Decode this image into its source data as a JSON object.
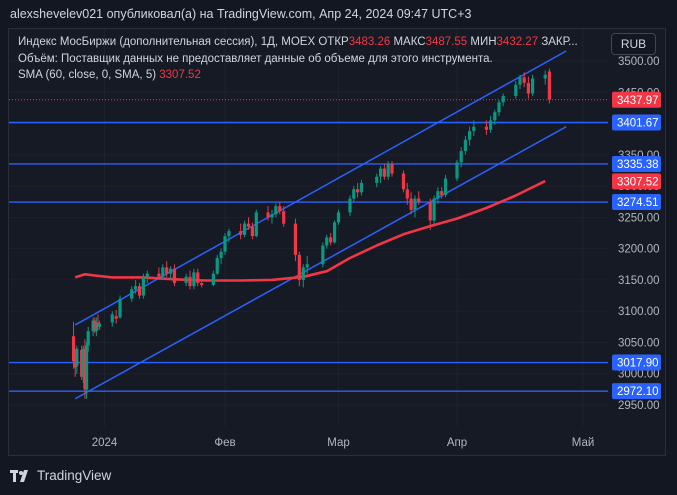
{
  "header": {
    "text": "alexshevelev021 опубликовал(а) на TradingView.com, Апр 24, 2024 09:47 UTC+3"
  },
  "legend": {
    "symbol": "Индекс МосБиржи (дополнительная сессия), 1Д, MOEX",
    "open_label": "ОТКР",
    "open_value": "3483.26",
    "high_label": "МАКС",
    "high_value": "3487.55",
    "low_label": "МИН",
    "low_value": "3432.27",
    "close_label": "ЗАКР...",
    "volume_text": "Объём: Поставщик данных не предоставляет данные об объеме для этого инструмента.",
    "sma_text": "SMA (60, close, 0, SMA, 5)",
    "sma_value": "3307.52"
  },
  "currency_button": "RUB",
  "footer": {
    "brand": "TradingView"
  },
  "colors": {
    "up": "#089981",
    "down": "#f23645",
    "channel": "#2962ff",
    "sma": "#f23645"
  },
  "chart_data": {
    "type": "candlestick",
    "x_ticks": [
      "2024",
      "Фев",
      "Мар",
      "Апр",
      "Май"
    ],
    "y_ticks": [
      "2950.00",
      "3000.00",
      "3050.00",
      "3100.00",
      "3150.00",
      "3200.00",
      "3250.00",
      "3300.00",
      "3350.00",
      "3400.00",
      "3450.00",
      "3500.00"
    ],
    "ylim": [
      2925,
      3510
    ],
    "horizontal_levels": [
      3401.67,
      3335.38,
      3274.51,
      3017.9,
      2972.1
    ],
    "price_tags": [
      {
        "value": 3437.97,
        "text": "3437.97",
        "color": "#f23645"
      },
      {
        "value": 3401.67,
        "text": "3401.67",
        "color": "#2962ff"
      },
      {
        "value": 3335.38,
        "text": "3335.38",
        "color": "#2962ff"
      },
      {
        "value": 3307.52,
        "text": "3307.52",
        "color": "#f23645"
      },
      {
        "value": 3274.51,
        "text": "3274.51",
        "color": "#2962ff"
      },
      {
        "value": 3017.9,
        "text": "3017.90",
        "color": "#2962ff"
      },
      {
        "value": 2972.1,
        "text": "2972.10",
        "color": "#2962ff"
      }
    ],
    "last_close": 3437.97,
    "channel_lines": [
      {
        "from": [
          "2023-12-14",
          3078
        ],
        "to": [
          "2024-04-27",
          3516
        ]
      },
      {
        "from": [
          "2023-12-14",
          2960
        ],
        "to": [
          "2024-04-27",
          3395
        ]
      }
    ],
    "sma": {
      "name": "SMA (60, close, 0, SMA, 5)",
      "points": [
        [
          "2023-12-14",
          3154
        ],
        [
          "2023-12-20",
          3159
        ],
        [
          "2023-12-26",
          3157
        ],
        [
          "2024-01-03",
          3154
        ],
        [
          "2024-01-11",
          3154
        ],
        [
          "2024-01-19",
          3151
        ],
        [
          "2024-01-27",
          3149
        ],
        [
          "2024-02-05",
          3149
        ],
        [
          "2024-02-13",
          3150
        ],
        [
          "2024-02-21",
          3155
        ],
        [
          "2024-02-27",
          3164
        ],
        [
          "2024-03-04",
          3185
        ],
        [
          "2024-03-11",
          3205
        ],
        [
          "2024-03-18",
          3223
        ],
        [
          "2024-03-25",
          3236
        ],
        [
          "2024-04-01",
          3248
        ],
        [
          "2024-04-08",
          3265
        ],
        [
          "2024-04-15",
          3285
        ],
        [
          "2024-04-22",
          3308
        ]
      ]
    },
    "candles": [
      {
        "date": "2023-12-13",
        "o": 3060,
        "h": 3083,
        "l": 3008,
        "c": 3020
      },
      {
        "date": "2023-12-14",
        "o": 3020,
        "h": 3035,
        "l": 2995,
        "c": 3010
      },
      {
        "date": "2023-12-15",
        "o": 3012,
        "h": 3045,
        "l": 3000,
        "c": 3040
      },
      {
        "date": "2023-12-18",
        "o": 3038,
        "h": 3045,
        "l": 2990,
        "c": 2995
      },
      {
        "date": "2023-12-19",
        "o": 2995,
        "h": 3045,
        "l": 2985,
        "c": 3040
      },
      {
        "date": "2023-12-20",
        "o": 3040,
        "h": 3055,
        "l": 2960,
        "c": 2975
      },
      {
        "date": "2023-12-21",
        "o": 2975,
        "h": 3050,
        "l": 2960,
        "c": 3045
      },
      {
        "date": "2023-12-22",
        "o": 3045,
        "h": 3075,
        "l": 3035,
        "c": 3068
      },
      {
        "date": "2023-12-25",
        "o": 3068,
        "h": 3090,
        "l": 3060,
        "c": 3085
      },
      {
        "date": "2023-12-26",
        "o": 3085,
        "h": 3090,
        "l": 3065,
        "c": 3070
      },
      {
        "date": "2023-12-27",
        "o": 3068,
        "h": 3090,
        "l": 3060,
        "c": 3082
      },
      {
        "date": "2023-12-28",
        "o": 3082,
        "h": 3095,
        "l": 3070,
        "c": 3075
      },
      {
        "date": "2023-12-29",
        "o": 3075,
        "h": 3085,
        "l": 3070,
        "c": 3080
      },
      {
        "date": "2024-01-03",
        "o": 3082,
        "h": 3100,
        "l": 3075,
        "c": 3095
      },
      {
        "date": "2024-01-04",
        "o": 3092,
        "h": 3102,
        "l": 3080,
        "c": 3088
      },
      {
        "date": "2024-01-05",
        "o": 3090,
        "h": 3125,
        "l": 3088,
        "c": 3120
      },
      {
        "date": "2024-01-08",
        "o": 3120,
        "h": 3140,
        "l": 3115,
        "c": 3135
      },
      {
        "date": "2024-01-09",
        "o": 3135,
        "h": 3150,
        "l": 3128,
        "c": 3140
      },
      {
        "date": "2024-01-10",
        "o": 3140,
        "h": 3145,
        "l": 3120,
        "c": 3125
      },
      {
        "date": "2024-01-11",
        "o": 3125,
        "h": 3160,
        "l": 3120,
        "c": 3155
      },
      {
        "date": "2024-01-12",
        "o": 3155,
        "h": 3165,
        "l": 3145,
        "c": 3160
      },
      {
        "date": "2024-01-15",
        "o": 3160,
        "h": 3170,
        "l": 3150,
        "c": 3155
      },
      {
        "date": "2024-01-16",
        "o": 3155,
        "h": 3175,
        "l": 3150,
        "c": 3170
      },
      {
        "date": "2024-01-17",
        "o": 3170,
        "h": 3180,
        "l": 3155,
        "c": 3160
      },
      {
        "date": "2024-01-18",
        "o": 3160,
        "h": 3172,
        "l": 3150,
        "c": 3168
      },
      {
        "date": "2024-01-19",
        "o": 3168,
        "h": 3175,
        "l": 3140,
        "c": 3145
      },
      {
        "date": "2024-01-22",
        "o": 3145,
        "h": 3160,
        "l": 3140,
        "c": 3155
      },
      {
        "date": "2024-01-23",
        "o": 3155,
        "h": 3165,
        "l": 3135,
        "c": 3140
      },
      {
        "date": "2024-01-24",
        "o": 3140,
        "h": 3168,
        "l": 3135,
        "c": 3162
      },
      {
        "date": "2024-01-25",
        "o": 3162,
        "h": 3168,
        "l": 3140,
        "c": 3145
      },
      {
        "date": "2024-01-26",
        "o": 3145,
        "h": 3150,
        "l": 3138,
        "c": 3142
      },
      {
        "date": "2024-01-29",
        "o": 3142,
        "h": 3165,
        "l": 3140,
        "c": 3160
      },
      {
        "date": "2024-01-30",
        "o": 3160,
        "h": 3190,
        "l": 3158,
        "c": 3185
      },
      {
        "date": "2024-01-31",
        "o": 3185,
        "h": 3200,
        "l": 3175,
        "c": 3195
      },
      {
        "date": "2024-02-01",
        "o": 3195,
        "h": 3225,
        "l": 3190,
        "c": 3220
      },
      {
        "date": "2024-02-02",
        "o": 3220,
        "h": 3232,
        "l": 3210,
        "c": 3228
      },
      {
        "date": "2024-02-05",
        "o": 3228,
        "h": 3240,
        "l": 3215,
        "c": 3222
      },
      {
        "date": "2024-02-06",
        "o": 3222,
        "h": 3245,
        "l": 3218,
        "c": 3240
      },
      {
        "date": "2024-02-07",
        "o": 3240,
        "h": 3250,
        "l": 3230,
        "c": 3235
      },
      {
        "date": "2024-02-08",
        "o": 3235,
        "h": 3242,
        "l": 3215,
        "c": 3220
      },
      {
        "date": "2024-02-09",
        "o": 3220,
        "h": 3262,
        "l": 3218,
        "c": 3258
      },
      {
        "date": "2024-02-12",
        "o": 3258,
        "h": 3268,
        "l": 3245,
        "c": 3250
      },
      {
        "date": "2024-02-13",
        "o": 3250,
        "h": 3262,
        "l": 3240,
        "c": 3255
      },
      {
        "date": "2024-02-14",
        "o": 3255,
        "h": 3272,
        "l": 3250,
        "c": 3268
      },
      {
        "date": "2024-02-15",
        "o": 3268,
        "h": 3275,
        "l": 3255,
        "c": 3260
      },
      {
        "date": "2024-02-16",
        "o": 3260,
        "h": 3268,
        "l": 3235,
        "c": 3240
      },
      {
        "date": "2024-02-19",
        "o": 3240,
        "h": 3248,
        "l": 3180,
        "c": 3190
      },
      {
        "date": "2024-02-20",
        "o": 3190,
        "h": 3195,
        "l": 3140,
        "c": 3150
      },
      {
        "date": "2024-02-21",
        "o": 3150,
        "h": 3175,
        "l": 3138,
        "c": 3170
      },
      {
        "date": "2024-02-22",
        "o": 3170,
        "h": 3188,
        "l": 3160,
        "c": 3175
      },
      {
        "date": "2024-02-26",
        "o": 3175,
        "h": 3210,
        "l": 3170,
        "c": 3205
      },
      {
        "date": "2024-02-27",
        "o": 3205,
        "h": 3222,
        "l": 3200,
        "c": 3218
      },
      {
        "date": "2024-02-28",
        "o": 3218,
        "h": 3225,
        "l": 3205,
        "c": 3210
      },
      {
        "date": "2024-02-29",
        "o": 3210,
        "h": 3245,
        "l": 3208,
        "c": 3242
      },
      {
        "date": "2024-03-01",
        "o": 3242,
        "h": 3262,
        "l": 3238,
        "c": 3258
      },
      {
        "date": "2024-03-04",
        "o": 3258,
        "h": 3285,
        "l": 3252,
        "c": 3280
      },
      {
        "date": "2024-03-05",
        "o": 3280,
        "h": 3300,
        "l": 3275,
        "c": 3295
      },
      {
        "date": "2024-03-06",
        "o": 3295,
        "h": 3305,
        "l": 3282,
        "c": 3290
      },
      {
        "date": "2024-03-07",
        "o": 3290,
        "h": 3310,
        "l": 3285,
        "c": 3305
      },
      {
        "date": "2024-03-11",
        "o": 3305,
        "h": 3320,
        "l": 3298,
        "c": 3315
      },
      {
        "date": "2024-03-12",
        "o": 3315,
        "h": 3332,
        "l": 3305,
        "c": 3328
      },
      {
        "date": "2024-03-13",
        "o": 3328,
        "h": 3335,
        "l": 3310,
        "c": 3315
      },
      {
        "date": "2024-03-14",
        "o": 3315,
        "h": 3340,
        "l": 3310,
        "c": 3335
      },
      {
        "date": "2024-03-15",
        "o": 3335,
        "h": 3340,
        "l": 3315,
        "c": 3320
      },
      {
        "date": "2024-03-18",
        "o": 3320,
        "h": 3325,
        "l": 3290,
        "c": 3295
      },
      {
        "date": "2024-03-19",
        "o": 3295,
        "h": 3305,
        "l": 3270,
        "c": 3280
      },
      {
        "date": "2024-03-20",
        "o": 3280,
        "h": 3290,
        "l": 3255,
        "c": 3262
      },
      {
        "date": "2024-03-21",
        "o": 3262,
        "h": 3285,
        "l": 3250,
        "c": 3280
      },
      {
        "date": "2024-03-22",
        "o": 3280,
        "h": 3292,
        "l": 3270,
        "c": 3275
      },
      {
        "date": "2024-03-25",
        "o": 3275,
        "h": 3280,
        "l": 3230,
        "c": 3245
      },
      {
        "date": "2024-03-26",
        "o": 3245,
        "h": 3285,
        "l": 3240,
        "c": 3280
      },
      {
        "date": "2024-03-27",
        "o": 3280,
        "h": 3298,
        "l": 3272,
        "c": 3292
      },
      {
        "date": "2024-03-28",
        "o": 3292,
        "h": 3298,
        "l": 3280,
        "c": 3286
      },
      {
        "date": "2024-03-29",
        "o": 3286,
        "h": 3318,
        "l": 3282,
        "c": 3312
      },
      {
        "date": "2024-04-01",
        "o": 3312,
        "h": 3342,
        "l": 3308,
        "c": 3338
      },
      {
        "date": "2024-04-02",
        "o": 3338,
        "h": 3362,
        "l": 3330,
        "c": 3356
      },
      {
        "date": "2024-04-03",
        "o": 3356,
        "h": 3380,
        "l": 3350,
        "c": 3374
      },
      {
        "date": "2024-04-04",
        "o": 3374,
        "h": 3395,
        "l": 3365,
        "c": 3388
      },
      {
        "date": "2024-04-05",
        "o": 3388,
        "h": 3405,
        "l": 3380,
        "c": 3395
      },
      {
        "date": "2024-04-08",
        "o": 3395,
        "h": 3405,
        "l": 3382,
        "c": 3390
      },
      {
        "date": "2024-04-09",
        "o": 3390,
        "h": 3412,
        "l": 3385,
        "c": 3405
      },
      {
        "date": "2024-04-10",
        "o": 3405,
        "h": 3422,
        "l": 3398,
        "c": 3418
      },
      {
        "date": "2024-04-11",
        "o": 3418,
        "h": 3438,
        "l": 3412,
        "c": 3434
      },
      {
        "date": "2024-04-12",
        "o": 3434,
        "h": 3448,
        "l": 3428,
        "c": 3444
      },
      {
        "date": "2024-04-15",
        "o": 3444,
        "h": 3468,
        "l": 3440,
        "c": 3462
      },
      {
        "date": "2024-04-16",
        "o": 3462,
        "h": 3478,
        "l": 3455,
        "c": 3474
      },
      {
        "date": "2024-04-17",
        "o": 3474,
        "h": 3482,
        "l": 3458,
        "c": 3465
      },
      {
        "date": "2024-04-18",
        "o": 3465,
        "h": 3475,
        "l": 3440,
        "c": 3448
      },
      {
        "date": "2024-04-19",
        "o": 3448,
        "h": 3478,
        "l": 3444,
        "c": 3472
      },
      {
        "date": "2024-04-22",
        "o": 3472,
        "h": 3485,
        "l": 3462,
        "c": 3478
      },
      {
        "date": "2024-04-23",
        "o": 3483.26,
        "h": 3487.55,
        "l": 3432.27,
        "c": 3437.97
      }
    ]
  }
}
